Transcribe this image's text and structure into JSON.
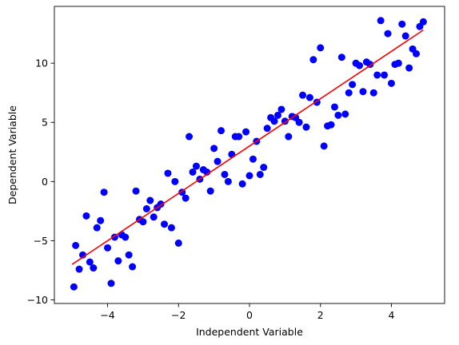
{
  "chart_data": {
    "type": "scatter",
    "title": "",
    "xlabel": "Independent Variable",
    "ylabel": "Dependent Variable",
    "xlim": [
      -5.5,
      5.5
    ],
    "ylim": [
      -10.3,
      14.8
    ],
    "xticks": [
      -4,
      -2,
      0,
      2,
      4
    ],
    "yticks": [
      -10,
      -5,
      0,
      5,
      10
    ],
    "grid": false,
    "legend": "none",
    "series": [
      {
        "kind": "points",
        "color": "#0000ff",
        "points": [
          [
            -4.95,
            -8.9
          ],
          [
            -4.9,
            -5.4
          ],
          [
            -4.8,
            -7.4
          ],
          [
            -4.7,
            -6.2
          ],
          [
            -4.6,
            -2.9
          ],
          [
            -4.5,
            -6.8
          ],
          [
            -4.4,
            -7.3
          ],
          [
            -4.3,
            -3.9
          ],
          [
            -4.2,
            -3.3
          ],
          [
            -4.1,
            -0.9
          ],
          [
            -4.0,
            -5.6
          ],
          [
            -3.9,
            -8.6
          ],
          [
            -3.8,
            -4.7
          ],
          [
            -3.7,
            -6.7
          ],
          [
            -3.6,
            -4.5
          ],
          [
            -3.5,
            -4.7
          ],
          [
            -3.4,
            -6.2
          ],
          [
            -3.3,
            -7.2
          ],
          [
            -3.2,
            -0.8
          ],
          [
            -3.1,
            -3.2
          ],
          [
            -3.0,
            -3.4
          ],
          [
            -2.9,
            -2.3
          ],
          [
            -2.8,
            -1.6
          ],
          [
            -2.7,
            -3.0
          ],
          [
            -2.6,
            -2.2
          ],
          [
            -2.5,
            -1.9
          ],
          [
            -2.4,
            -3.6
          ],
          [
            -2.3,
            0.7
          ],
          [
            -2.2,
            -3.9
          ],
          [
            -2.1,
            0.0
          ],
          [
            -2.0,
            -5.2
          ],
          [
            -1.9,
            -0.9
          ],
          [
            -1.8,
            -1.4
          ],
          [
            -1.7,
            3.8
          ],
          [
            -1.6,
            0.8
          ],
          [
            -1.5,
            1.3
          ],
          [
            -1.4,
            0.2
          ],
          [
            -1.3,
            1.0
          ],
          [
            -1.2,
            0.8
          ],
          [
            -1.1,
            -0.8
          ],
          [
            -1.0,
            2.8
          ],
          [
            -0.9,
            1.7
          ],
          [
            -0.8,
            4.3
          ],
          [
            -0.7,
            0.6
          ],
          [
            -0.6,
            0.0
          ],
          [
            -0.5,
            2.3
          ],
          [
            -0.4,
            3.8
          ],
          [
            -0.3,
            3.8
          ],
          [
            -0.2,
            -0.2
          ],
          [
            -0.1,
            4.2
          ],
          [
            0.0,
            0.5
          ],
          [
            0.1,
            1.9
          ],
          [
            0.2,
            3.4
          ],
          [
            0.3,
            0.6
          ],
          [
            0.4,
            1.2
          ],
          [
            0.5,
            4.5
          ],
          [
            0.6,
            5.4
          ],
          [
            0.7,
            5.1
          ],
          [
            0.8,
            5.6
          ],
          [
            0.9,
            6.1
          ],
          [
            1.0,
            5.1
          ],
          [
            1.1,
            3.8
          ],
          [
            1.2,
            5.5
          ],
          [
            1.3,
            5.4
          ],
          [
            1.4,
            5.0
          ],
          [
            1.5,
            7.3
          ],
          [
            1.6,
            4.6
          ],
          [
            1.7,
            7.1
          ],
          [
            1.8,
            10.3
          ],
          [
            1.9,
            6.7
          ],
          [
            2.0,
            11.3
          ],
          [
            2.1,
            3.0
          ],
          [
            2.2,
            4.7
          ],
          [
            2.3,
            4.8
          ],
          [
            2.4,
            6.3
          ],
          [
            2.5,
            5.6
          ],
          [
            2.6,
            10.5
          ],
          [
            2.7,
            5.7
          ],
          [
            2.8,
            7.5
          ],
          [
            2.9,
            8.2
          ],
          [
            3.0,
            10.0
          ],
          [
            3.1,
            9.8
          ],
          [
            3.2,
            7.6
          ],
          [
            3.3,
            10.1
          ],
          [
            3.4,
            9.9
          ],
          [
            3.5,
            7.5
          ],
          [
            3.6,
            9.0
          ],
          [
            3.7,
            13.6
          ],
          [
            3.8,
            9.0
          ],
          [
            3.9,
            12.5
          ],
          [
            4.0,
            8.3
          ],
          [
            4.1,
            9.9
          ],
          [
            4.2,
            10.0
          ],
          [
            4.3,
            13.3
          ],
          [
            4.4,
            12.3
          ],
          [
            4.5,
            9.6
          ],
          [
            4.6,
            11.2
          ],
          [
            4.7,
            10.8
          ],
          [
            4.8,
            13.1
          ],
          [
            4.9,
            13.5
          ]
        ]
      },
      {
        "kind": "line",
        "color": "#ff0000",
        "x": [
          -5.0,
          4.9
        ],
        "y": [
          -7.0,
          12.8
        ]
      }
    ]
  }
}
